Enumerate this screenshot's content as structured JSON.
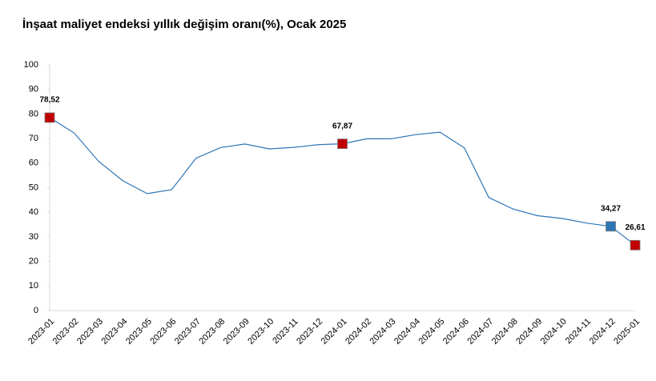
{
  "chart_data": {
    "type": "line",
    "title": "İnşaat maliyet endeksi yıllık değişim oranı(%), Ocak 2025",
    "categories": [
      "2023-01",
      "2023-02",
      "2023-03",
      "2023-04",
      "2023-05",
      "2023-06",
      "2023-07",
      "2023-08",
      "2023-09",
      "2023-10",
      "2023-11",
      "2023-12",
      "2024-01",
      "2024-02",
      "2024-03",
      "2024-04",
      "2024-05",
      "2024-06",
      "2024-07",
      "2024-08",
      "2024-09",
      "2024-10",
      "2024-11",
      "2024-12",
      "2025-01"
    ],
    "series": [
      {
        "color": "#2e75b6",
        "values": [
          78.52,
          72.3,
          60.8,
          52.8,
          47.6,
          49.2,
          62.0,
          66.3,
          67.8,
          65.8,
          66.4,
          67.5,
          67.87,
          69.9,
          69.9,
          71.6,
          72.6,
          66.2,
          46.0,
          41.3,
          38.6,
          37.5,
          35.6,
          34.27,
          26.61
        ],
        "value_labels": [
          "78,52",
          null,
          null,
          null,
          null,
          null,
          null,
          null,
          null,
          null,
          null,
          null,
          "67,87",
          null,
          null,
          null,
          null,
          null,
          null,
          null,
          null,
          null,
          null,
          "34,27",
          "26,61"
        ],
        "marker_colors": [
          "#c00000",
          null,
          null,
          null,
          null,
          null,
          null,
          null,
          null,
          null,
          null,
          null,
          "#c00000",
          null,
          null,
          null,
          null,
          null,
          null,
          null,
          null,
          null,
          null,
          "#2e75b6",
          "#c00000"
        ]
      }
    ],
    "ylim": [
      0,
      100
    ],
    "yticks": [
      0,
      10,
      20,
      30,
      40,
      50,
      60,
      70,
      80,
      90,
      100
    ],
    "grid": false
  }
}
